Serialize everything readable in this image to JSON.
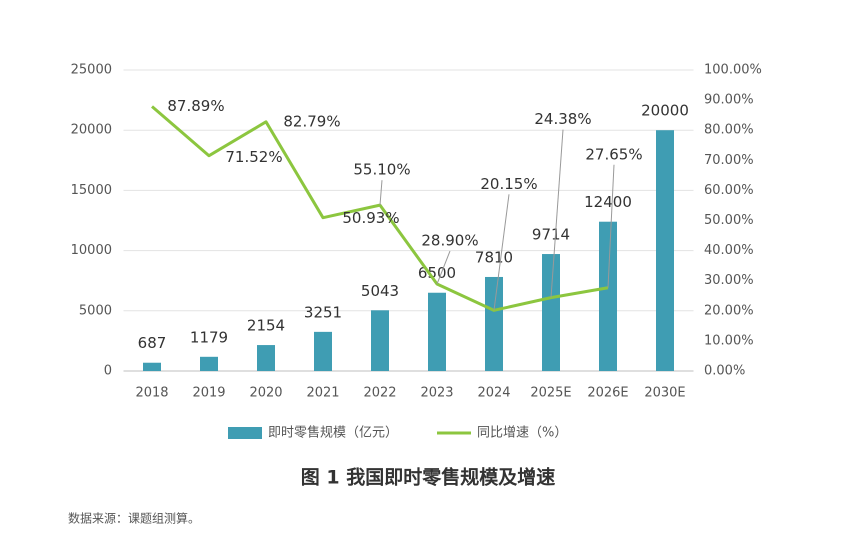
{
  "chart_data": {
    "type": "bar_line",
    "title": "图 1 我国即时零售规模及增速",
    "source": "数据来源：课题组测算。",
    "categories": [
      "2018",
      "2019",
      "2020",
      "2021",
      "2022",
      "2023",
      "2024",
      "2025E",
      "2026E",
      "2030E"
    ],
    "series": [
      {
        "name": "即时零售规模（亿元）",
        "type": "bar",
        "color": "#3f9db3",
        "values": [
          687,
          1179,
          2154,
          3251,
          5043,
          6500,
          7810,
          9714,
          12400,
          20000
        ]
      },
      {
        "name": "同比增速（%）",
        "type": "line",
        "axis": "y2",
        "color": "#8cc63f",
        "values": [
          87.89,
          71.52,
          82.79,
          50.93,
          55.1,
          28.9,
          20.15,
          24.38,
          27.65,
          null
        ],
        "value_labels": [
          "87.89%",
          "71.52%",
          "82.79%",
          "50.93%",
          "55.10%",
          "28.90%",
          "20.15%",
          "24.38%",
          "27.65%",
          null
        ]
      }
    ],
    "ylim": [
      0,
      25000
    ],
    "yticks": [
      0,
      5000,
      10000,
      15000,
      20000,
      25000
    ],
    "y2lim": [
      0,
      100
    ],
    "y2ticks": [
      {
        "value": 0,
        "label": "0.00%"
      },
      {
        "value": 10,
        "label": "10.00%"
      },
      {
        "value": 20,
        "label": "20.00%"
      },
      {
        "value": 30,
        "label": "30.00%"
      },
      {
        "value": 40,
        "label": "40.00%"
      },
      {
        "value": 50,
        "label": "50.00%"
      },
      {
        "value": 60,
        "label": "60.00%"
      },
      {
        "value": 70,
        "label": "70.00%"
      },
      {
        "value": 80,
        "label": "80.00%"
      },
      {
        "value": 90,
        "label": "90.00%"
      },
      {
        "value": 100,
        "label": "100.00%"
      }
    ],
    "grid": true
  }
}
